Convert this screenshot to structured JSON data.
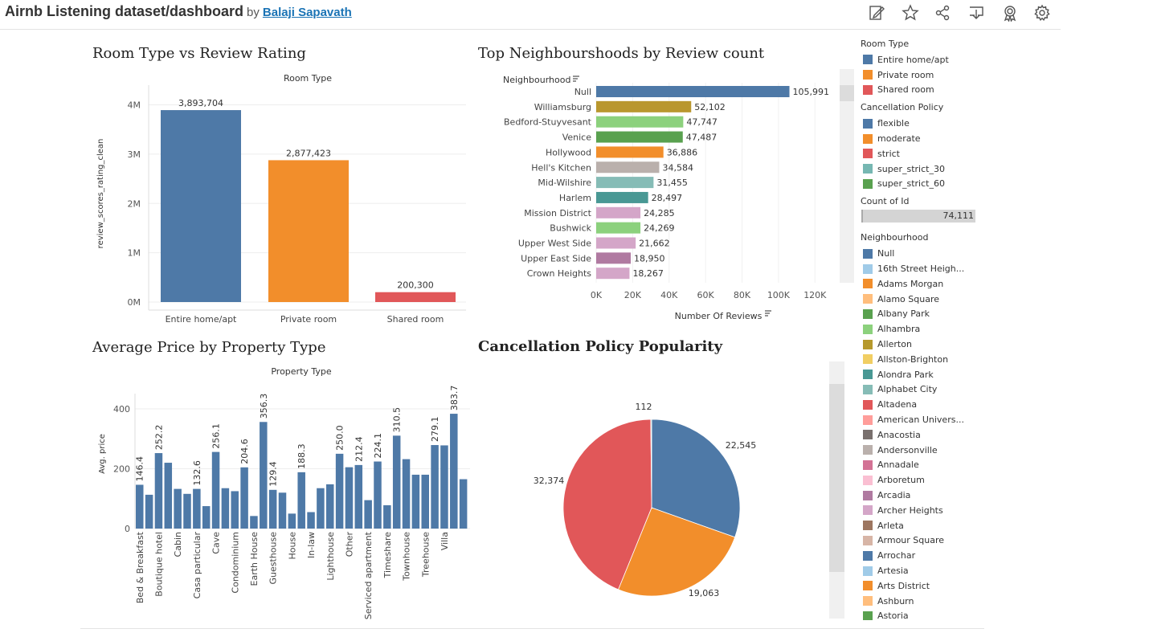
{
  "header": {
    "title": "Airnb Listening dataset/dashboard",
    "by": "by",
    "author": "Balaji Sapavath",
    "icons": [
      "edit-icon",
      "star-icon",
      "share-icon",
      "download-icon",
      "badge-icon",
      "gear-icon"
    ]
  },
  "room_chart": {
    "title": "Room Type vs Review Rating",
    "header": "Room Type",
    "ylabel": "review_scores_rating_clean",
    "yticks": [
      "4M",
      "3M",
      "2M",
      "1M",
      "0M"
    ],
    "chart_data": {
      "type": "bar",
      "categories": [
        "Entire home/apt",
        "Private room",
        "Shared room"
      ],
      "values": [
        3893704,
        2877423,
        200300
      ],
      "value_labels": [
        "3,893,704",
        "2,877,423",
        "200,300"
      ],
      "colors": [
        "#4e79a7",
        "#f28e2b",
        "#e15759"
      ],
      "ylim": [
        0,
        4400000
      ]
    }
  },
  "neigh_chart": {
    "title": "Top Neighbourshoods by Review count",
    "row_header": "Neighbourhood",
    "xlabel": "Number Of Reviews",
    "xticks": [
      "0K",
      "20K",
      "40K",
      "60K",
      "80K",
      "100K",
      "120K"
    ],
    "chart_data": {
      "type": "bar",
      "orientation": "horizontal",
      "categories": [
        "Null",
        "Williamsburg",
        "Bedford-Stuyvesant",
        "Venice",
        "Hollywood",
        "Hell's Kitchen",
        "Mid-Wilshire",
        "Harlem",
        "Mission District",
        "Bushwick",
        "Upper West Side",
        "Upper East Side",
        "Crown Heights"
      ],
      "values": [
        105991,
        52102,
        47747,
        47487,
        36886,
        34584,
        31455,
        28497,
        24285,
        24269,
        21662,
        18950,
        18267
      ],
      "value_labels": [
        "105,991",
        "52,102",
        "47,747",
        "47,487",
        "36,886",
        "34,584",
        "31,455",
        "28,497",
        "24,285",
        "24,269",
        "21,662",
        "18,950",
        "18,267"
      ],
      "colors": [
        "#4e79a7",
        "#b9972e",
        "#8cd17d",
        "#59a14f",
        "#f28e2b",
        "#bab0ac",
        "#86bcb6",
        "#499894",
        "#d4a6c8",
        "#8cd17d",
        "#d4a6c8",
        "#b07aa1",
        "#d4a6c8"
      ],
      "xlim": [
        0,
        130000
      ]
    }
  },
  "price_chart": {
    "title": "Average Price by Property Type",
    "header": "Property Type",
    "ylabel": "Avg. price",
    "yticks": [
      "400",
      "200",
      "0"
    ],
    "chart_data": {
      "type": "bar",
      "values": [
        146.4,
        113,
        252.2,
        220,
        132.6,
        116,
        132.6,
        75,
        256.1,
        135,
        125,
        204.6,
        42,
        356.3,
        129.4,
        120,
        50,
        188.3,
        55,
        135,
        148,
        250.0,
        205,
        212.4,
        95,
        224.1,
        78,
        310.5,
        232,
        180,
        180,
        279.1,
        278,
        383.7,
        165
      ],
      "value_labels": [
        "146.4",
        "",
        "252.2",
        "",
        "",
        "",
        "132.6",
        "",
        "256.1",
        "",
        "",
        "204.6",
        "",
        "356.3",
        "129.4",
        "",
        "",
        "188.3",
        "",
        "",
        "",
        "250.0",
        "",
        "212.4",
        "",
        "224.1",
        "",
        "310.5",
        "",
        "",
        "",
        "279.1",
        "",
        "383.7",
        ""
      ],
      "xtick_labels": [
        "Bed & Breakfast",
        "",
        "Boutique hotel",
        "",
        "Cabin",
        "",
        "Casa particular",
        "",
        "Cave",
        "",
        "Condominium",
        "",
        "Earth House",
        "",
        "Guesthouse",
        "",
        "House",
        "",
        "In-law",
        "",
        "Lighthouse",
        "",
        "Other",
        "",
        "Serviced apartment",
        "",
        "Timeshare",
        "",
        "Townhouse",
        "",
        "Treehouse",
        "",
        "Villa",
        ""
      ],
      "ylim": [
        0,
        480
      ],
      "color": "#4e79a7"
    }
  },
  "pie_chart": {
    "title": "Cancellation Policy Popularity",
    "chart_data": {
      "type": "pie",
      "labels": [
        "flexible",
        "moderate",
        "strict",
        "super_strict_30"
      ],
      "values": [
        22545,
        19063,
        32374,
        112
      ],
      "value_labels": [
        "22,545",
        "19,063",
        "32,374",
        "112"
      ],
      "colors": [
        "#4e79a7",
        "#f28e2b",
        "#e15759",
        "#76b7b2"
      ]
    }
  },
  "legend": {
    "room_type_title": "Room Type",
    "room_types": [
      {
        "label": "Entire home/apt",
        "color": "#4e79a7"
      },
      {
        "label": "Private room",
        "color": "#f28e2b"
      },
      {
        "label": "Shared room",
        "color": "#e15759"
      }
    ],
    "cancel_title": "Cancellation Policy",
    "cancel": [
      {
        "label": "flexible",
        "color": "#4e79a7"
      },
      {
        "label": "moderate",
        "color": "#f28e2b"
      },
      {
        "label": "strict",
        "color": "#e15759"
      },
      {
        "label": "super_strict_30",
        "color": "#76b7b2"
      },
      {
        "label": "super_strict_60",
        "color": "#59a14f"
      }
    ],
    "count_title": "Count of Id",
    "count_value": "74,111",
    "neigh_title": "Neighbourhood",
    "neigh": [
      {
        "label": "Null",
        "color": "#4e79a7"
      },
      {
        "label": "16th Street Heigh...",
        "color": "#a0cbe8"
      },
      {
        "label": "Adams Morgan",
        "color": "#f28e2b"
      },
      {
        "label": "Alamo Square",
        "color": "#ffbe7d"
      },
      {
        "label": "Albany Park",
        "color": "#59a14f"
      },
      {
        "label": "Alhambra",
        "color": "#8cd17d"
      },
      {
        "label": "Allerton",
        "color": "#b6992d"
      },
      {
        "label": "Allston-Brighton",
        "color": "#f1ce63"
      },
      {
        "label": "Alondra Park",
        "color": "#499894"
      },
      {
        "label": "Alphabet City",
        "color": "#86bcb6"
      },
      {
        "label": "Altadena",
        "color": "#e15759"
      },
      {
        "label": "American Univers...",
        "color": "#ff9d9a"
      },
      {
        "label": "Anacostia",
        "color": "#79706e"
      },
      {
        "label": "Andersonville",
        "color": "#bab0ac"
      },
      {
        "label": "Annadale",
        "color": "#d37295"
      },
      {
        "label": "Arboretum",
        "color": "#fabfd2"
      },
      {
        "label": "Arcadia",
        "color": "#b07aa1"
      },
      {
        "label": "Archer Heights",
        "color": "#d4a6c8"
      },
      {
        "label": "Arleta",
        "color": "#9d7660"
      },
      {
        "label": "Armour Square",
        "color": "#d7b5a6"
      },
      {
        "label": "Arrochar",
        "color": "#4e79a7"
      },
      {
        "label": "Artesia",
        "color": "#a0cbe8"
      },
      {
        "label": "Arts District",
        "color": "#f28e2b"
      },
      {
        "label": "Ashburn",
        "color": "#ffbe7d"
      },
      {
        "label": "Astoria",
        "color": "#59a14f"
      }
    ]
  }
}
